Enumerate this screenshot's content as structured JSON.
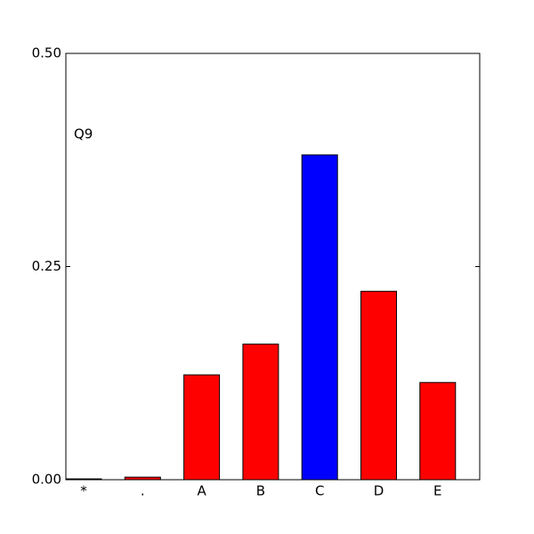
{
  "chart_data": {
    "type": "bar",
    "annotation": "Q9",
    "categories": [
      "*",
      ".",
      "A",
      "B",
      "C",
      "D",
      "E"
    ],
    "values": [
      0.001,
      0.003,
      0.123,
      0.159,
      0.381,
      0.221,
      0.114
    ],
    "colors": [
      "#ff0000",
      "#ff0000",
      "#ff0000",
      "#ff0000",
      "#0000ff",
      "#ff0000",
      "#ff0000"
    ],
    "ylim": [
      0,
      0.5
    ],
    "yticks": [
      {
        "value": 0,
        "label": "0.00"
      },
      {
        "value": 0.25,
        "label": "0.25"
      },
      {
        "value": 0.5,
        "label": "0.50"
      }
    ]
  }
}
